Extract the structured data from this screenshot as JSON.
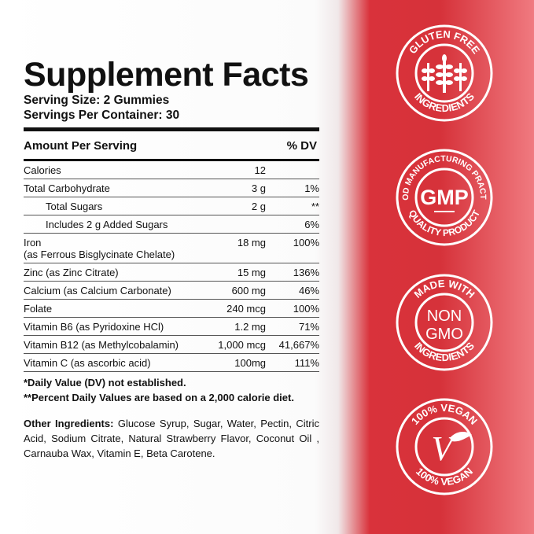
{
  "title": "Supplement Facts",
  "serving_size": "Serving Size: 2 Gummies",
  "servings_per_container": "Servings Per Container: 30",
  "header": {
    "amount": "Amount Per Serving",
    "dv": "% DV"
  },
  "rows": [
    {
      "name": "Calories",
      "amount": "12",
      "dv": ""
    },
    {
      "name": "Total Carbohydrate",
      "amount": "3 g",
      "dv": "1%"
    },
    {
      "name": "Total Sugars",
      "amount": "2 g",
      "dv": "**"
    },
    {
      "name": "Includes 2 g Added Sugars",
      "amount": "",
      "dv": "6%"
    },
    {
      "name": "Iron",
      "sub": "(as Ferrous Bisglycinate Chelate)",
      "amount": "18 mg",
      "dv": "100%"
    },
    {
      "name": "Zinc (as Zinc Citrate)",
      "amount": "15 mg",
      "dv": "136%"
    },
    {
      "name": "Calcium (as Calcium Carbonate)",
      "amount": "600 mg",
      "dv": "46%"
    },
    {
      "name": "Folate",
      "amount": "240 mcg",
      "dv": "100%"
    },
    {
      "name": "Vitamin B6 (as Pyridoxine HCl)",
      "amount": "1.2 mg",
      "dv": "71%"
    },
    {
      "name": "Vitamin B12 (as Methylcobalamin)",
      "amount": "1,000 mcg",
      "dv": "41,667%"
    },
    {
      "name": "Vitamin C (as ascorbic acid)",
      "amount": "100mg",
      "dv": "111%"
    }
  ],
  "notes": [
    "*Daily Value (DV) not established.",
    "**Percent Daily Values are based on a 2,000 calorie diet."
  ],
  "other_label": "Other Ingredients:",
  "other_text": " Glucose Syrup, Sugar, Water, Pectin, Citric Acid, Sodium Citrate, Natural Strawberry Flavor, Coconut Oil , Carnauba Wax, Vitamin E, Beta Carotene.",
  "badges": [
    {
      "top": "GLUTEN FREE",
      "bottom": "INGREDIENTS",
      "center": "",
      "icon": "wheat-icon"
    },
    {
      "top": "GOOD MANUFACTURING PRACTICE",
      "bottom": "QUALITY PRODUCT",
      "center": "GMP",
      "icon": ""
    },
    {
      "top": "MADE WITH",
      "bottom": "INGREDIENTS",
      "center": "NON GMO",
      "center1": "NON",
      "center2": "GMO",
      "icon": ""
    },
    {
      "top": "100% VEGAN",
      "bottom": "100% VEGAN",
      "center": "V",
      "icon": "leaf-icon"
    }
  ],
  "colors": {
    "accent": "#d6323a"
  }
}
